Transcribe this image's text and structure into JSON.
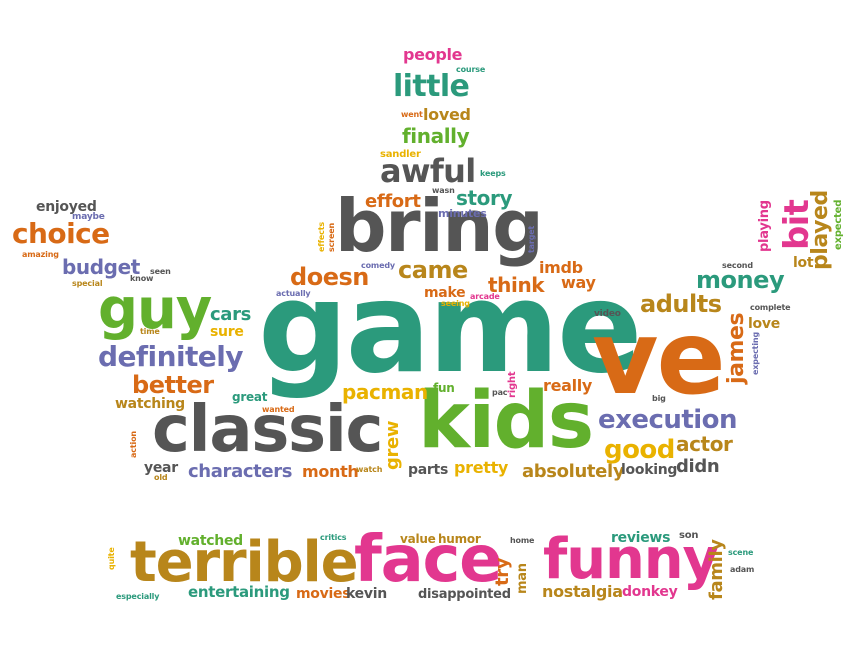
{
  "colors": {
    "teal": "#2b9a7c",
    "green": "#62b02d",
    "orange": "#d86a16",
    "gray": "#555555",
    "pink": "#e2378f",
    "brown": "#b8861b",
    "purple": "#6b6db0",
    "gold": "#e9b200"
  },
  "words": {
    "game": "game",
    "ve": "ve",
    "bring": "bring",
    "kids": "kids",
    "classic": "classic",
    "face": "face",
    "terrible": "terrible",
    "funny": "funny",
    "guy": "guy",
    "awful": "awful",
    "little": "little",
    "choice": "choice",
    "definitely": "definitely",
    "execution": "execution",
    "money": "money",
    "adults": "adults",
    "better": "better",
    "good": "good",
    "came": "came",
    "doesn": "doesn",
    "bit": "bit",
    "played": "played",
    "james": "james",
    "budget": "budget",
    "pacman": "pacman",
    "finally": "finally",
    "story": "story",
    "think": "think",
    "effort": "effort",
    "characters": "characters",
    "absolutely": "absolutely",
    "actor": "actor",
    "didn": "didn",
    "nostalgia": "nostalgia",
    "entertaining": "entertaining",
    "watched": "watched",
    "people": "people",
    "loved": "loved",
    "cars": "cars",
    "sure": "sure",
    "imdb": "imdb",
    "way": "way",
    "make": "make",
    "really": "really",
    "grew": "grew",
    "pretty": "pretty",
    "month": "month",
    "parts": "parts",
    "looking": "looking",
    "family": "family",
    "reviews": "reviews",
    "donkey": "donkey",
    "movies": "movies",
    "kevin": "kevin",
    "disappointed": "disappointed",
    "value": "value",
    "humor": "humor",
    "try": "try",
    "man": "man",
    "enjoyed": "enjoyed",
    "watching": "watching",
    "year": "year",
    "great": "great",
    "love": "love",
    "fun": "fun",
    "playing": "playing",
    "expected": "expected",
    "lot": "lot",
    "minutes": "minutes",
    "sandler": "sandler",
    "course": "course",
    "went": "went",
    "keeps": "keeps",
    "wasn": "wasn",
    "maybe": "maybe",
    "amazing": "amazing",
    "special": "special",
    "know": "know",
    "seen": "seen",
    "effects": "effects",
    "screen": "screen",
    "comedy": "comedy",
    "actually": "actually",
    "target": "target",
    "arcade": "arcade",
    "seeing": "seeing",
    "second": "second",
    "complete": "complete",
    "expecting": "expecting",
    "video": "video",
    "time": "time",
    "wanted": "wanted",
    "action": "action",
    "old": "old",
    "watch": "watch",
    "right": "right",
    "pac": "pac",
    "big": "big",
    "critics": "critics",
    "home": "home",
    "son": "son",
    "scene": "scene",
    "adam": "adam",
    "quite": "quite",
    "especially": "especially"
  }
}
